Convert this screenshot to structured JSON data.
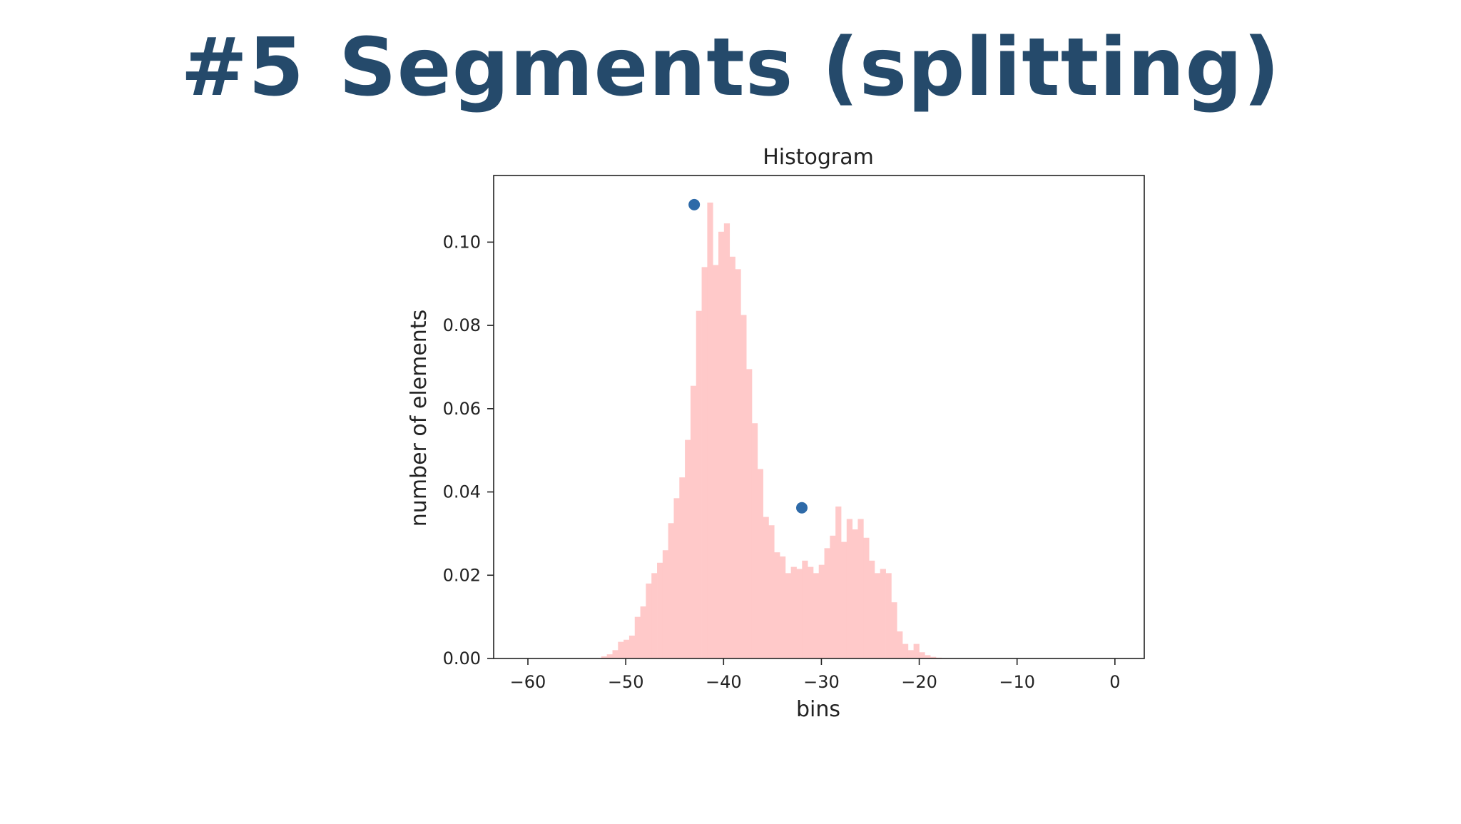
{
  "slide": {
    "number": "#5",
    "heading": "Segments (splitting)"
  },
  "colors": {
    "title": "#254a6b",
    "bar": "#ffc9c9",
    "marker": "#2e6aa8",
    "axis": "#222222"
  },
  "chart_data": {
    "type": "bar",
    "title": "Histogram",
    "xlabel": "bins",
    "ylabel": "number of elements",
    "xlim": [
      -63.5,
      3
    ],
    "ylim": [
      0,
      0.116
    ],
    "grid": false,
    "xticks": [
      -60,
      -50,
      -40,
      -30,
      -20,
      -10,
      0
    ],
    "xtick_labels": [
      "−60",
      "−50",
      "−40",
      "−30",
      "−20",
      "−10",
      "0"
    ],
    "yticks": [
      0.0,
      0.02,
      0.04,
      0.06,
      0.08,
      0.1
    ],
    "ytick_labels": [
      "0.00",
      "0.02",
      "0.04",
      "0.06",
      "0.08",
      "0.10"
    ],
    "bin_start": -52.5,
    "bin_width": 0.57,
    "values": [
      0.0005,
      0.001,
      0.002,
      0.004,
      0.0045,
      0.0055,
      0.01,
      0.0125,
      0.018,
      0.0205,
      0.023,
      0.026,
      0.0325,
      0.0385,
      0.0435,
      0.0525,
      0.0655,
      0.0835,
      0.094,
      0.1095,
      0.0945,
      0.1025,
      0.1045,
      0.0965,
      0.0935,
      0.0825,
      0.0695,
      0.0565,
      0.0455,
      0.034,
      0.032,
      0.0255,
      0.0245,
      0.0205,
      0.022,
      0.0215,
      0.0235,
      0.022,
      0.0205,
      0.0225,
      0.0265,
      0.0295,
      0.0365,
      0.028,
      0.0335,
      0.031,
      0.0335,
      0.029,
      0.0235,
      0.0205,
      0.0215,
      0.0205,
      0.0135,
      0.0065,
      0.0035,
      0.002,
      0.0035,
      0.0015,
      0.0008,
      0.0004,
      0.0002,
      0.0001
    ],
    "peaks": [
      {
        "x": -43.0,
        "y": 0.109
      },
      {
        "x": -32.0,
        "y": 0.0362
      }
    ]
  }
}
